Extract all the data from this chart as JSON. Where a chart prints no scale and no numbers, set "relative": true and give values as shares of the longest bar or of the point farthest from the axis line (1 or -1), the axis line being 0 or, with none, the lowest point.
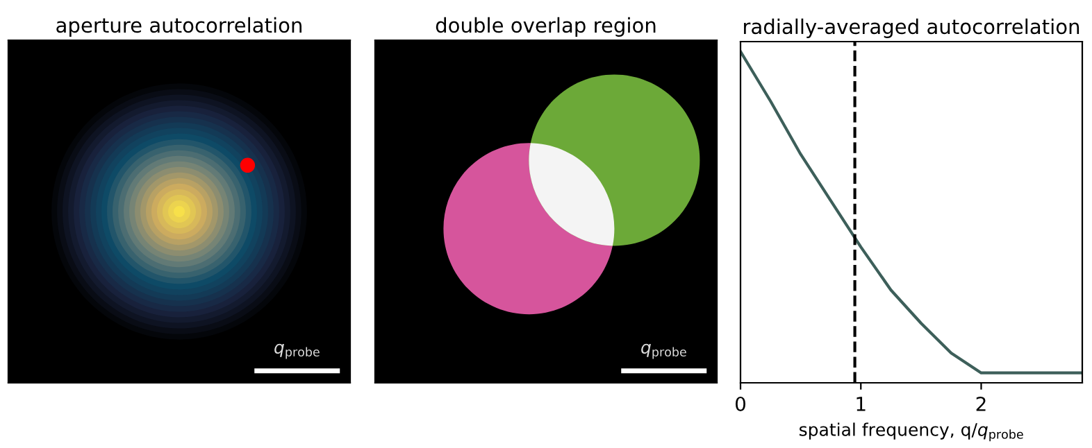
{
  "chart_data": [
    {
      "type": "other",
      "title": "aperture autocorrelation",
      "annotations": [
        "q$_{probe}$"
      ]
    },
    {
      "type": "other",
      "title": "double overlap region",
      "annotations": [
        "q$_{probe}$"
      ]
    },
    {
      "type": "line",
      "title": "radially-averaged autocorrelation",
      "xlabel": "spatial frequency, q/q$_{probe}$",
      "relative": true,
      "x": [
        0,
        0.25,
        0.5,
        0.75,
        1,
        1.25,
        1.5,
        1.75,
        2,
        2.84
      ],
      "series": [
        {
          "color": "#3d5f5a",
          "values": [
            1,
            0.85,
            0.69,
            0.55,
            0.41,
            0.28,
            0.18,
            0.09,
            0.03,
            0.03
          ]
        }
      ],
      "xlim": [
        0,
        2.84
      ],
      "xticks": [
        0,
        1,
        2
      ],
      "ref_lines": [
        {
          "axis": "x",
          "value": 0.95,
          "color": "#000000",
          "line_style": "dashed"
        }
      ],
      "grid": false,
      "legend": false,
      "marker": "none",
      "line_style": "solid"
    }
  ]
}
